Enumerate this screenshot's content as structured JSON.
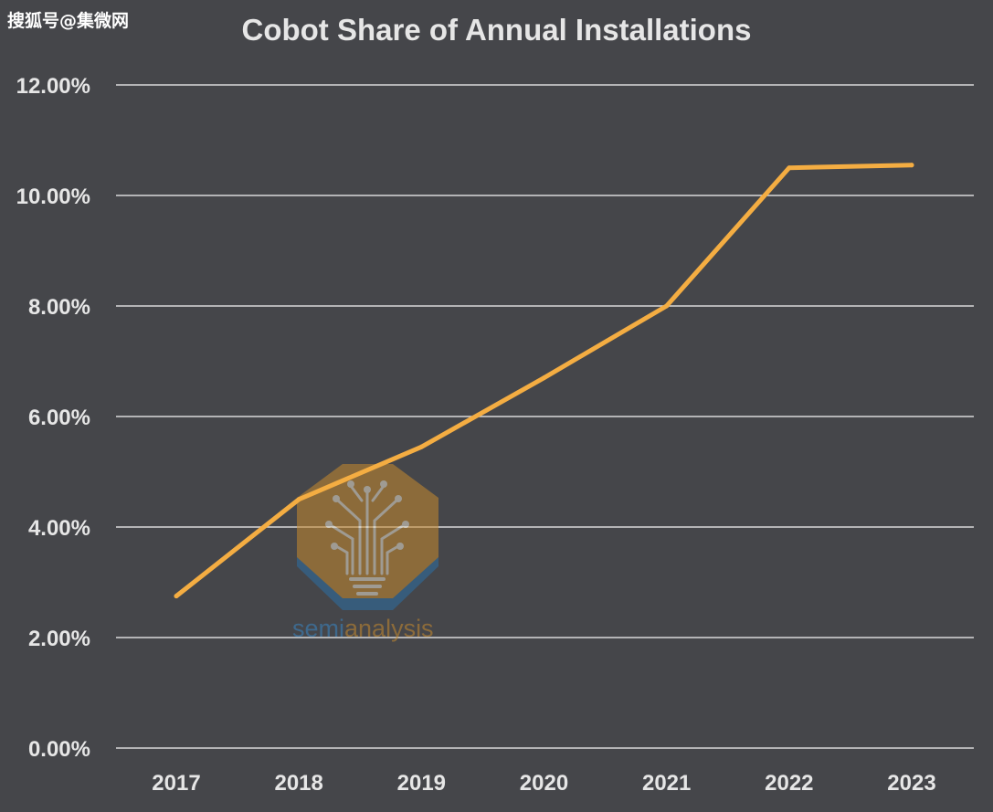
{
  "watermark": {
    "source_text": "搜狐号@集微网",
    "logo_text_part1": "semi",
    "logo_text_part2": "analysis"
  },
  "colors": {
    "background": "#45464a",
    "gridline": "#d9d9d9",
    "line": "#f4ad42",
    "text": "#e6e6e6"
  },
  "chart_data": {
    "type": "line",
    "title": "Cobot Share of Annual Installations",
    "xlabel": "",
    "ylabel": "",
    "categories": [
      "2017",
      "2018",
      "2019",
      "2020",
      "2021",
      "2022",
      "2023"
    ],
    "series": [
      {
        "values": [
          2.75,
          4.5,
          5.45,
          6.7,
          8.0,
          10.5,
          10.55
        ]
      }
    ],
    "ylim": [
      0,
      12
    ],
    "yticks": [
      "0.00%",
      "2.00%",
      "4.00%",
      "6.00%",
      "8.00%",
      "10.00%",
      "12.00%"
    ],
    "ytick_values": [
      0,
      2,
      4,
      6,
      8,
      10,
      12
    ],
    "grid": true,
    "legend": "none"
  }
}
